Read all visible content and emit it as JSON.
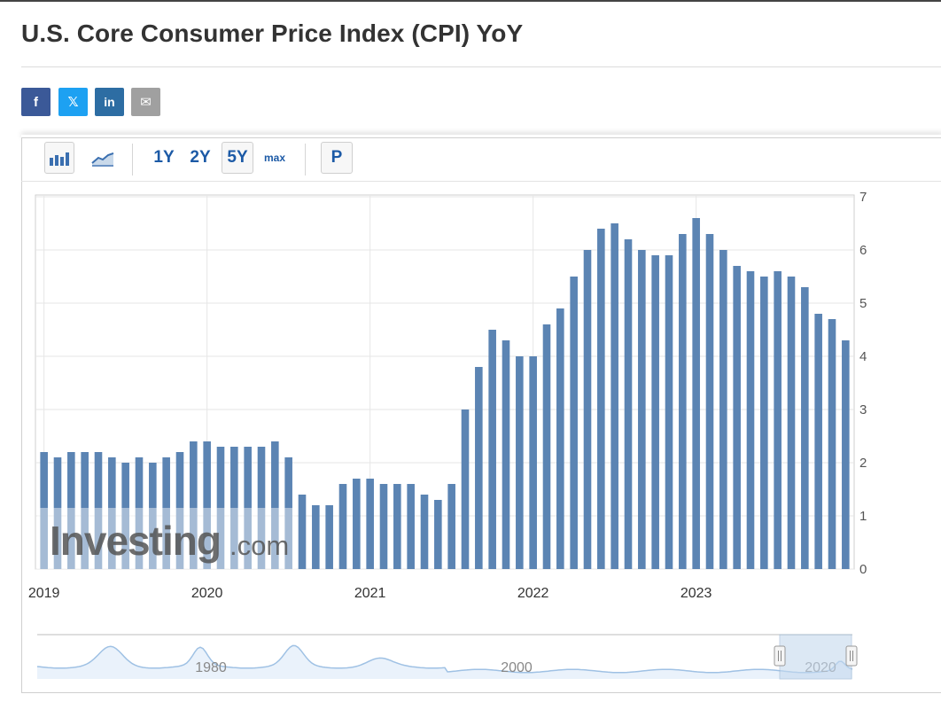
{
  "page": {
    "title": "U.S. Core Consumer Price Index (CPI) YoY"
  },
  "share": [
    {
      "name": "facebook-share-button",
      "icon": "facebook-icon",
      "glyph": "f",
      "color": "#3b5998"
    },
    {
      "name": "twitter-share-button",
      "icon": "x-twitter-icon",
      "glyph": "𝕏",
      "color": "#1da1f2"
    },
    {
      "name": "linkedin-share-button",
      "icon": "linkedin-icon",
      "glyph": "in",
      "color": "#2d6da3"
    },
    {
      "name": "email-share-button",
      "icon": "envelope-icon",
      "glyph": "✉",
      "color": "#a0a0a0"
    }
  ],
  "toolbar": {
    "range_1y": "1Y",
    "range_2y": "2Y",
    "range_5y": "5Y",
    "range_max": "max",
    "p_label": "P",
    "selected_range": "5Y",
    "icons": [
      "bar-chart-icon",
      "area-chart-icon"
    ]
  },
  "colors": {
    "bar": "#5b84b3",
    "watermark_bar": "#adc2d9",
    "grid": "#e6e6e6",
    "accent": "#1c5aa6",
    "navigator_line": "#9fc1e4"
  },
  "watermark": {
    "brand": "Investing",
    "suffix": ".com"
  },
  "chart_data": {
    "type": "bar",
    "title": "U.S. Core Consumer Price Index (CPI) YoY",
    "xlabel": "",
    "ylabel": "",
    "ylim": [
      0,
      7
    ],
    "yticks": [
      "0",
      "1",
      "2",
      "3",
      "4",
      "5",
      "6",
      "7"
    ],
    "x_tick_labels": [
      "2019",
      "2020",
      "2021",
      "2022",
      "2023"
    ],
    "grid": true,
    "y_axis_side": "right",
    "start": "2019-01",
    "values": [
      2.2,
      2.1,
      2.2,
      2.2,
      2.2,
      2.1,
      2.0,
      2.1,
      2.0,
      2.1,
      2.2,
      2.4,
      2.4,
      2.3,
      2.3,
      2.3,
      2.3,
      2.4,
      2.1,
      1.4,
      1.2,
      1.2,
      1.6,
      1.7,
      1.7,
      1.6,
      1.6,
      1.6,
      1.4,
      1.3,
      1.6,
      3.0,
      3.8,
      4.5,
      4.3,
      4.0,
      4.0,
      4.6,
      4.9,
      5.5,
      6.0,
      6.4,
      6.5,
      6.2,
      6.0,
      5.9,
      5.9,
      6.3,
      6.6,
      6.3,
      6.0,
      5.7,
      5.6,
      5.5,
      5.6,
      5.5,
      5.3,
      4.8,
      4.7,
      4.3
    ],
    "navigator": {
      "tick_labels": [
        "1980",
        "2000",
        "2020"
      ]
    }
  }
}
